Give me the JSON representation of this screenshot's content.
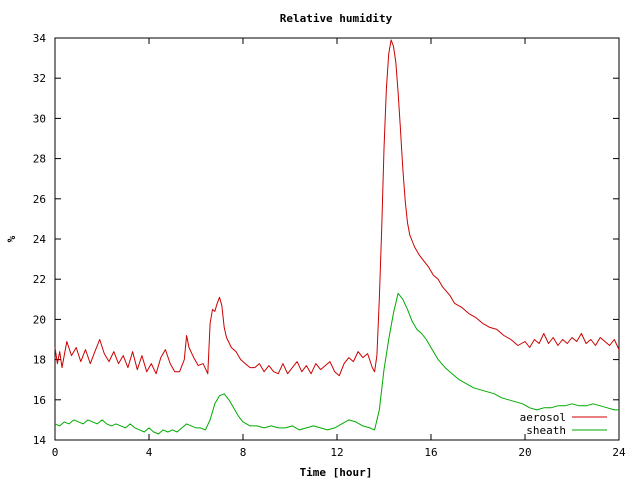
{
  "chart_data": {
    "type": "line",
    "title": "Relative humidity",
    "xlabel": "Time [hour]",
    "ylabel": "%",
    "xlim": [
      0,
      24
    ],
    "ylim": [
      14,
      34
    ],
    "xticks": [
      0,
      4,
      8,
      12,
      16,
      20,
      24
    ],
    "yticks": [
      14,
      16,
      18,
      20,
      22,
      24,
      26,
      28,
      30,
      32,
      34
    ],
    "x_tick_labels": [
      "0",
      "4",
      "8",
      "12",
      "16",
      "20",
      "24"
    ],
    "y_tick_labels": [
      "14",
      "16",
      "18",
      "20",
      "22",
      "24",
      "26",
      "28",
      "30",
      "32",
      "34"
    ],
    "grid": false,
    "legend_position": "bottom-right",
    "series": [
      {
        "name": "aerosol",
        "color": "#cc0000",
        "points": [
          [
            0,
            18.6
          ],
          [
            0.1,
            17.8
          ],
          [
            0.2,
            18.4
          ],
          [
            0.3,
            17.6
          ],
          [
            0.5,
            18.9
          ],
          [
            0.7,
            18.2
          ],
          [
            0.9,
            18.6
          ],
          [
            1.1,
            17.9
          ],
          [
            1.3,
            18.5
          ],
          [
            1.5,
            17.8
          ],
          [
            1.7,
            18.4
          ],
          [
            1.9,
            19.0
          ],
          [
            2.1,
            18.3
          ],
          [
            2.3,
            17.9
          ],
          [
            2.5,
            18.4
          ],
          [
            2.7,
            17.8
          ],
          [
            2.9,
            18.2
          ],
          [
            3.1,
            17.6
          ],
          [
            3.3,
            18.4
          ],
          [
            3.5,
            17.5
          ],
          [
            3.7,
            18.2
          ],
          [
            3.9,
            17.4
          ],
          [
            4.1,
            17.8
          ],
          [
            4.3,
            17.3
          ],
          [
            4.5,
            18.1
          ],
          [
            4.7,
            18.5
          ],
          [
            4.9,
            17.8
          ],
          [
            5.1,
            17.4
          ],
          [
            5.3,
            17.4
          ],
          [
            5.5,
            18.0
          ],
          [
            5.6,
            19.2
          ],
          [
            5.7,
            18.6
          ],
          [
            5.9,
            18.1
          ],
          [
            6.1,
            17.7
          ],
          [
            6.3,
            17.8
          ],
          [
            6.5,
            17.3
          ],
          [
            6.6,
            19.8
          ],
          [
            6.7,
            20.5
          ],
          [
            6.8,
            20.4
          ],
          [
            6.9,
            20.8
          ],
          [
            7.0,
            21.1
          ],
          [
            7.1,
            20.7
          ],
          [
            7.2,
            19.6
          ],
          [
            7.3,
            19.1
          ],
          [
            7.5,
            18.6
          ],
          [
            7.7,
            18.4
          ],
          [
            7.9,
            18.0
          ],
          [
            8.1,
            17.8
          ],
          [
            8.3,
            17.6
          ],
          [
            8.5,
            17.6
          ],
          [
            8.7,
            17.8
          ],
          [
            8.9,
            17.4
          ],
          [
            9.1,
            17.7
          ],
          [
            9.3,
            17.4
          ],
          [
            9.5,
            17.3
          ],
          [
            9.7,
            17.8
          ],
          [
            9.9,
            17.3
          ],
          [
            10.1,
            17.6
          ],
          [
            10.3,
            17.9
          ],
          [
            10.5,
            17.4
          ],
          [
            10.7,
            17.7
          ],
          [
            10.9,
            17.3
          ],
          [
            11.1,
            17.8
          ],
          [
            11.3,
            17.5
          ],
          [
            11.5,
            17.7
          ],
          [
            11.7,
            17.9
          ],
          [
            11.9,
            17.4
          ],
          [
            12.1,
            17.2
          ],
          [
            12.3,
            17.8
          ],
          [
            12.5,
            18.1
          ],
          [
            12.7,
            17.9
          ],
          [
            12.9,
            18.4
          ],
          [
            13.1,
            18.1
          ],
          [
            13.3,
            18.3
          ],
          [
            13.5,
            17.6
          ],
          [
            13.6,
            17.4
          ],
          [
            13.7,
            18.2
          ],
          [
            13.8,
            21.0
          ],
          [
            13.9,
            24.5
          ],
          [
            14.0,
            28.5
          ],
          [
            14.1,
            31.5
          ],
          [
            14.2,
            33.2
          ],
          [
            14.3,
            33.9
          ],
          [
            14.4,
            33.6
          ],
          [
            14.5,
            32.8
          ],
          [
            14.6,
            31.3
          ],
          [
            14.7,
            29.5
          ],
          [
            14.8,
            27.5
          ],
          [
            14.9,
            25.9
          ],
          [
            15.0,
            24.8
          ],
          [
            15.1,
            24.2
          ],
          [
            15.3,
            23.6
          ],
          [
            15.5,
            23.2
          ],
          [
            15.7,
            22.9
          ],
          [
            15.9,
            22.6
          ],
          [
            16.1,
            22.2
          ],
          [
            16.3,
            22.0
          ],
          [
            16.5,
            21.6
          ],
          [
            16.8,
            21.2
          ],
          [
            17.0,
            20.8
          ],
          [
            17.3,
            20.6
          ],
          [
            17.6,
            20.3
          ],
          [
            17.9,
            20.1
          ],
          [
            18.2,
            19.8
          ],
          [
            18.5,
            19.6
          ],
          [
            18.8,
            19.5
          ],
          [
            19.1,
            19.2
          ],
          [
            19.4,
            19.0
          ],
          [
            19.7,
            18.7
          ],
          [
            20.0,
            18.9
          ],
          [
            20.2,
            18.6
          ],
          [
            20.4,
            19.0
          ],
          [
            20.6,
            18.8
          ],
          [
            20.8,
            19.3
          ],
          [
            21.0,
            18.8
          ],
          [
            21.2,
            19.1
          ],
          [
            21.4,
            18.7
          ],
          [
            21.6,
            19.0
          ],
          [
            21.8,
            18.8
          ],
          [
            22.0,
            19.1
          ],
          [
            22.2,
            18.9
          ],
          [
            22.4,
            19.3
          ],
          [
            22.6,
            18.8
          ],
          [
            22.8,
            19.0
          ],
          [
            23.0,
            18.7
          ],
          [
            23.2,
            19.1
          ],
          [
            23.4,
            18.9
          ],
          [
            23.6,
            18.7
          ],
          [
            23.8,
            19.0
          ],
          [
            24.0,
            18.5
          ]
        ]
      },
      {
        "name": "sheath",
        "color": "#00aa00",
        "points": [
          [
            0,
            14.8
          ],
          [
            0.2,
            14.7
          ],
          [
            0.4,
            14.9
          ],
          [
            0.6,
            14.8
          ],
          [
            0.8,
            15.0
          ],
          [
            1.0,
            14.9
          ],
          [
            1.2,
            14.8
          ],
          [
            1.4,
            15.0
          ],
          [
            1.6,
            14.9
          ],
          [
            1.8,
            14.8
          ],
          [
            2.0,
            15.0
          ],
          [
            2.2,
            14.8
          ],
          [
            2.4,
            14.7
          ],
          [
            2.6,
            14.8
          ],
          [
            2.8,
            14.7
          ],
          [
            3.0,
            14.6
          ],
          [
            3.2,
            14.8
          ],
          [
            3.4,
            14.6
          ],
          [
            3.6,
            14.5
          ],
          [
            3.8,
            14.4
          ],
          [
            4.0,
            14.6
          ],
          [
            4.2,
            14.4
          ],
          [
            4.4,
            14.3
          ],
          [
            4.6,
            14.5
          ],
          [
            4.8,
            14.4
          ],
          [
            5.0,
            14.5
          ],
          [
            5.2,
            14.4
          ],
          [
            5.4,
            14.6
          ],
          [
            5.6,
            14.8
          ],
          [
            5.8,
            14.7
          ],
          [
            6.0,
            14.6
          ],
          [
            6.2,
            14.6
          ],
          [
            6.4,
            14.5
          ],
          [
            6.6,
            15.0
          ],
          [
            6.8,
            15.8
          ],
          [
            7.0,
            16.2
          ],
          [
            7.2,
            16.3
          ],
          [
            7.4,
            16.0
          ],
          [
            7.6,
            15.6
          ],
          [
            7.8,
            15.2
          ],
          [
            8.0,
            14.9
          ],
          [
            8.3,
            14.7
          ],
          [
            8.6,
            14.7
          ],
          [
            8.9,
            14.6
          ],
          [
            9.2,
            14.7
          ],
          [
            9.5,
            14.6
          ],
          [
            9.8,
            14.6
          ],
          [
            10.1,
            14.7
          ],
          [
            10.4,
            14.5
          ],
          [
            10.7,
            14.6
          ],
          [
            11.0,
            14.7
          ],
          [
            11.3,
            14.6
          ],
          [
            11.6,
            14.5
          ],
          [
            11.9,
            14.6
          ],
          [
            12.2,
            14.8
          ],
          [
            12.5,
            15.0
          ],
          [
            12.8,
            14.9
          ],
          [
            13.1,
            14.7
          ],
          [
            13.4,
            14.6
          ],
          [
            13.6,
            14.5
          ],
          [
            13.8,
            15.5
          ],
          [
            14.0,
            17.5
          ],
          [
            14.2,
            19.0
          ],
          [
            14.4,
            20.3
          ],
          [
            14.6,
            21.3
          ],
          [
            14.8,
            21.0
          ],
          [
            15.0,
            20.5
          ],
          [
            15.2,
            19.9
          ],
          [
            15.4,
            19.5
          ],
          [
            15.6,
            19.3
          ],
          [
            15.8,
            19.0
          ],
          [
            16.0,
            18.6
          ],
          [
            16.3,
            18.0
          ],
          [
            16.6,
            17.6
          ],
          [
            16.9,
            17.3
          ],
          [
            17.2,
            17.0
          ],
          [
            17.5,
            16.8
          ],
          [
            17.8,
            16.6
          ],
          [
            18.1,
            16.5
          ],
          [
            18.4,
            16.4
          ],
          [
            18.7,
            16.3
          ],
          [
            19.0,
            16.1
          ],
          [
            19.3,
            16.0
          ],
          [
            19.6,
            15.9
          ],
          [
            19.9,
            15.8
          ],
          [
            20.2,
            15.6
          ],
          [
            20.5,
            15.5
          ],
          [
            20.8,
            15.6
          ],
          [
            21.1,
            15.6
          ],
          [
            21.4,
            15.7
          ],
          [
            21.7,
            15.7
          ],
          [
            22.0,
            15.8
          ],
          [
            22.3,
            15.7
          ],
          [
            22.6,
            15.7
          ],
          [
            22.9,
            15.8
          ],
          [
            23.2,
            15.7
          ],
          [
            23.5,
            15.6
          ],
          [
            23.8,
            15.5
          ],
          [
            24.0,
            15.5
          ]
        ]
      }
    ]
  }
}
